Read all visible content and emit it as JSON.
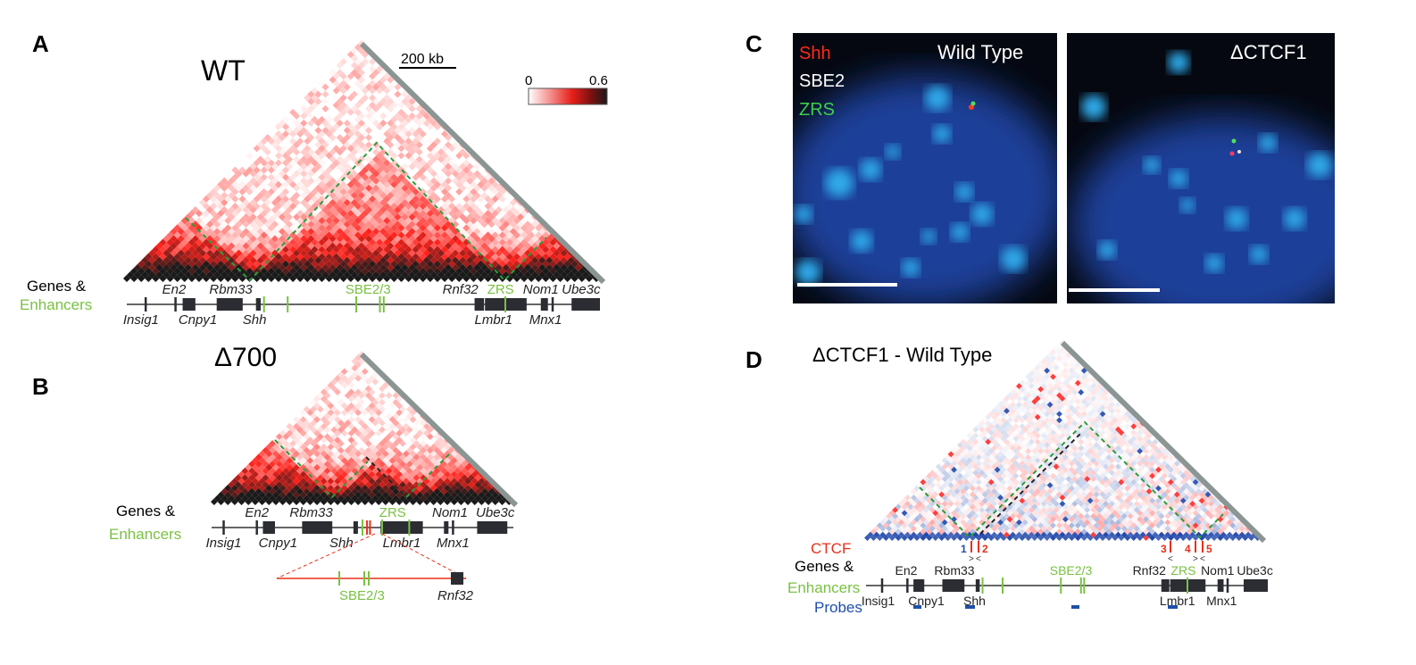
{
  "panels": {
    "A": {
      "letter": "A",
      "title": "WT",
      "scale_bar": "200 kb",
      "colorbar": {
        "min": "0",
        "max": "0.6",
        "colors": [
          "#ffffff",
          "#e8201a",
          "#1a1a1a"
        ]
      }
    },
    "B": {
      "letter": "B",
      "title": "Δ700",
      "insert_enhancer": "SBE2/3",
      "insert_gene": "Rnf32"
    },
    "C": {
      "letter": "C",
      "legend": {
        "shh": "Shh",
        "sbe2": "SBE2",
        "zrs": "ZRS"
      },
      "left_title": "Wild Type",
      "right_title": "ΔCTCF1"
    },
    "D": {
      "letter": "D",
      "title": "ΔCTCF1 - Wild Type",
      "ctcf_label": "CTCF",
      "ctcf_sites": [
        "1",
        "2",
        "3",
        "4",
        "5"
      ],
      "probes_label": "Probes"
    }
  },
  "track": {
    "genes_label": "Genes &",
    "enhancers_label": "Enhancers",
    "genes_above": [
      "En2",
      "Rbm33",
      "Rnf32",
      "Nom1",
      "Ube3c"
    ],
    "genes_below": [
      "Insig1",
      "Cnpy1",
      "Shh",
      "Lmbr1",
      "Mnx1"
    ],
    "enhancers": [
      "SBE2/3",
      "ZRS"
    ]
  },
  "colors": {
    "enhancer": "#7ac143",
    "ctcf": "#e8301a",
    "probe": "#1f4fa8",
    "gene": "#2b2d33"
  }
}
